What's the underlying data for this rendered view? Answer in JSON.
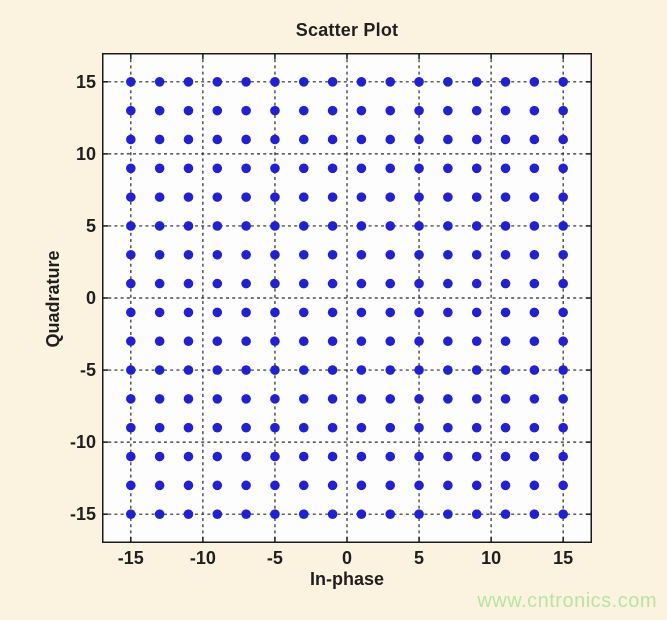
{
  "figure_title": "Scatter Plot",
  "watermark": {
    "text": "www.cntronics.com",
    "color": "#b9e3a4"
  },
  "colors": {
    "page_bg": "#fbf3df",
    "plot_bg": "#fdfdfd",
    "frame": "#1a1a1a",
    "grid": "#2a2a2a",
    "text": "#1f1f1f",
    "dot": "#2121ce"
  },
  "chart_data": {
    "type": "scatter",
    "title": "Scatter Plot",
    "xlabel": "In-phase",
    "ylabel": "Quadrature",
    "xlim": [
      -17,
      17
    ],
    "ylim": [
      -17,
      17
    ],
    "xticks": [
      -15,
      -10,
      -5,
      0,
      5,
      10,
      15
    ],
    "yticks": [
      -15,
      -10,
      -5,
      0,
      5,
      10,
      15
    ],
    "grid": "dashed",
    "legend": "none",
    "marker": {
      "shape": "dot",
      "color": "#2121ce",
      "radius": 4.8
    },
    "x_levels": [
      -15,
      -13,
      -11,
      -9,
      -7,
      -5,
      -3,
      -1,
      1,
      3,
      5,
      7,
      9,
      11,
      13,
      15
    ],
    "y_levels": [
      -15,
      -13,
      -11,
      -9,
      -7,
      -5,
      -3,
      -1,
      1,
      3,
      5,
      7,
      9,
      11,
      13,
      15
    ],
    "points": {
      "description": "cartesian product of x_levels and y_levels (256-QAM constellation)",
      "count": 256
    }
  }
}
